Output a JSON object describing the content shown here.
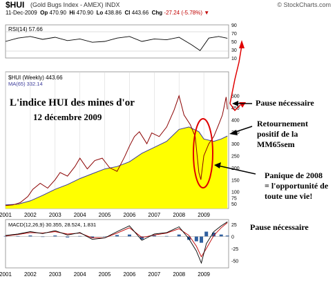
{
  "header": {
    "symbol": "$HUI",
    "name": "(Gold Bugs Index - AMEX) INDX",
    "logo": "© StockCharts.com",
    "date": "11-Dec-2009",
    "open_label": "Op",
    "open_value": "470.90",
    "high_label": "Hi",
    "high_value": "470.90",
    "low_label": "Lo",
    "low_value": "438.86",
    "close_label": "Cl",
    "close_value": "443.66",
    "change_label": "Chg",
    "change_value": "-27.24 (-5.78%)",
    "change_arrow": "▼"
  },
  "annotations": {
    "title_line1": "L'indice HUI des mines d'or",
    "title_line2": "12 décembre 2009",
    "pause_main": "Pause nécessaire",
    "retour_line1": "Retournement",
    "retour_line2": "positif de la",
    "retour_line3": "MM65sem",
    "panique_line1": "Panique de 2008",
    "panique_line2": "= l'opportunité de",
    "panique_line3": "toute une vie!",
    "pause_macd": "Pause nécessaire"
  },
  "colors": {
    "price": "#8b0000",
    "ma": "#3a3a9a",
    "fill": "#ffff00",
    "red_annot": "#e00000",
    "histogram": "#3060a0"
  },
  "chart_data": [
    {
      "type": "line",
      "panel": "rsi",
      "legend": "RSI(14) 57.66",
      "series_name": "RSI(14)",
      "last_value": 57.66,
      "ylim": [
        10,
        90
      ],
      "yticks": [
        10,
        30,
        50,
        70,
        90
      ],
      "reference_lines": [
        30,
        70
      ],
      "x": [
        2001.0,
        2001.5,
        2002.0,
        2002.5,
        2003.0,
        2003.5,
        2004.0,
        2004.5,
        2005.0,
        2005.5,
        2006.0,
        2006.5,
        2007.0,
        2007.5,
        2008.0,
        2008.5,
        2008.85,
        2009.2,
        2009.6,
        2009.95
      ],
      "values": [
        50,
        58,
        62,
        55,
        60,
        52,
        56,
        48,
        50,
        58,
        62,
        50,
        56,
        54,
        60,
        42,
        28,
        58,
        62,
        57.66
      ]
    },
    {
      "type": "line",
      "panel": "price",
      "legend_price": "$HUI (Weekly) 443.66",
      "legend_ma": "MA(65) 332.14",
      "ylim": [
        30,
        600
      ],
      "yticks": [
        50,
        75,
        100,
        150,
        200,
        250,
        300,
        350,
        400,
        450,
        500
      ],
      "xticks": [
        "2001",
        "2002",
        "2003",
        "2004",
        "2005",
        "2006",
        "2007",
        "2008",
        "2009"
      ],
      "xtick_positions": [
        2001,
        2002,
        2003,
        2004,
        2005,
        2006,
        2007,
        2008,
        2009
      ],
      "series": [
        {
          "name": "$HUI (Weekly)",
          "x": [
            2001.0,
            2001.3,
            2001.6,
            2001.9,
            2002.1,
            2002.4,
            2002.7,
            2003.0,
            2003.2,
            2003.5,
            2003.8,
            2004.0,
            2004.3,
            2004.6,
            2004.9,
            2005.2,
            2005.5,
            2005.8,
            2006.0,
            2006.2,
            2006.4,
            2006.7,
            2006.9,
            2007.2,
            2007.5,
            2007.8,
            2008.0,
            2008.2,
            2008.45,
            2008.65,
            2008.8,
            2008.88,
            2009.0,
            2009.2,
            2009.4,
            2009.6,
            2009.75,
            2009.9,
            2009.95
          ],
          "values": [
            42,
            45,
            55,
            80,
            110,
            135,
            115,
            150,
            180,
            165,
            205,
            240,
            195,
            230,
            240,
            200,
            185,
            245,
            290,
            330,
            350,
            300,
            345,
            330,
            370,
            440,
            500,
            420,
            380,
            330,
            180,
            150,
            250,
            300,
            330,
            380,
            420,
            495,
            443.66
          ]
        },
        {
          "name": "MA(65)",
          "x": [
            2001.0,
            2001.5,
            2002.0,
            2002.5,
            2003.0,
            2003.5,
            2004.0,
            2004.5,
            2005.0,
            2005.5,
            2006.0,
            2006.5,
            2007.0,
            2007.5,
            2008.0,
            2008.4,
            2008.8,
            2009.0,
            2009.4,
            2009.7,
            2009.95
          ],
          "values": [
            45,
            48,
            62,
            85,
            110,
            130,
            155,
            175,
            195,
            205,
            225,
            260,
            285,
            310,
            360,
            370,
            350,
            320,
            310,
            320,
            332.14
          ]
        }
      ]
    },
    {
      "type": "line",
      "panel": "macd",
      "legend": "MACD(12,26,9) 30.355, 28.524, 1.831",
      "macd": 30.355,
      "signal": 28.524,
      "histogram": 1.831,
      "ylim": [
        -65,
        35
      ],
      "yticks": [
        -50,
        -25,
        0,
        25
      ],
      "xticks": [
        "2001",
        "2002",
        "2003",
        "2004",
        "2005",
        "2006",
        "2007",
        "2008",
        "2009"
      ],
      "xtick_positions": [
        2001,
        2002,
        2003,
        2004,
        2005,
        2006,
        2007,
        2008,
        2009
      ],
      "x": [
        2001.0,
        2001.5,
        2002.0,
        2002.5,
        2003.0,
        2003.5,
        2004.0,
        2004.5,
        2005.0,
        2005.5,
        2006.0,
        2006.5,
        2007.0,
        2007.5,
        2008.0,
        2008.4,
        2008.7,
        2008.9,
        2009.1,
        2009.4,
        2009.7,
        2009.95
      ],
      "macd_values": [
        2,
        5,
        10,
        6,
        12,
        3,
        8,
        -6,
        -3,
        10,
        22,
        -8,
        5,
        8,
        20,
        -5,
        -30,
        -55,
        -15,
        10,
        22,
        30.355
      ],
      "signal_values": [
        1,
        4,
        8,
        7,
        10,
        5,
        7,
        -3,
        -3,
        7,
        18,
        -2,
        3,
        7,
        16,
        2,
        -20,
        -42,
        -25,
        2,
        18,
        28.524
      ]
    }
  ]
}
